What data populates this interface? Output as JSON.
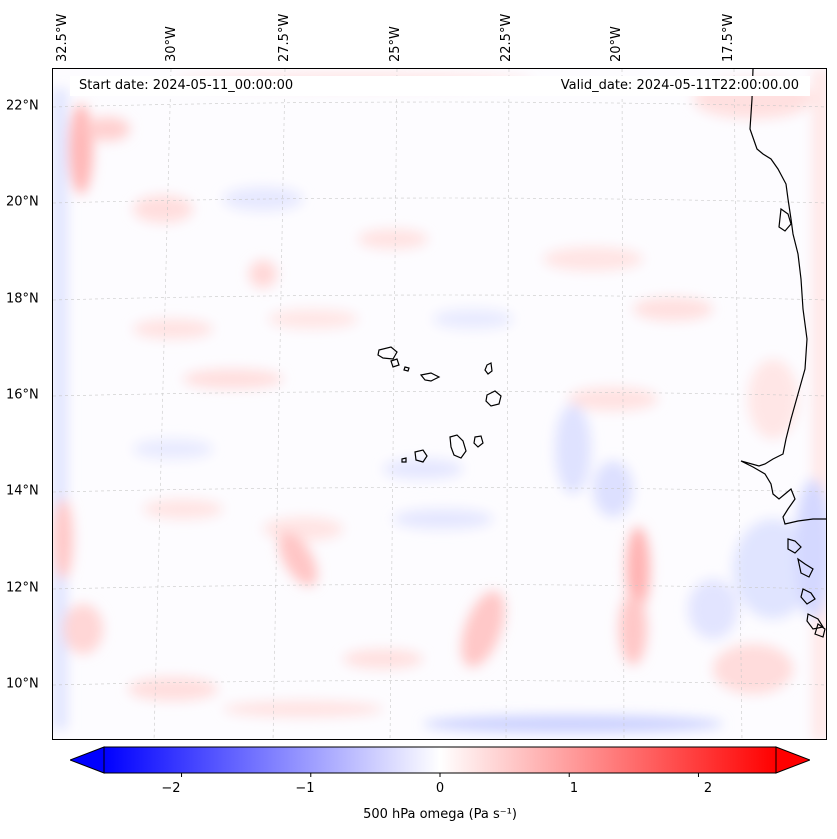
{
  "map": {
    "region": "Cabo Verde and West African coast",
    "longitude_labels": [
      "32.5°W",
      "30°W",
      "27.5°W",
      "25°W",
      "22.5°W",
      "20°W",
      "17.5°W"
    ],
    "latitude_labels": [
      "22°N",
      "20°N",
      "18°N",
      "16°N",
      "14°N",
      "12°N",
      "10°N"
    ],
    "start_date": "Start date: 2024-05-11_00:00:00",
    "valid_date": "Valid_date: 2024-05-11T22:00:00.00",
    "field": "500 hPa omega"
  },
  "colorbar": {
    "ticks": [
      "−2",
      "−1",
      "0",
      "1",
      "2"
    ],
    "tick_values": [
      -2,
      -1,
      0,
      1,
      2
    ],
    "min": -2.6,
    "max": 2.6,
    "label": "500 hPa omega (Pa s⁻¹)",
    "colors": {
      "negative": "#0000ff",
      "zero": "#ffffff",
      "positive": "#ff0000"
    }
  }
}
